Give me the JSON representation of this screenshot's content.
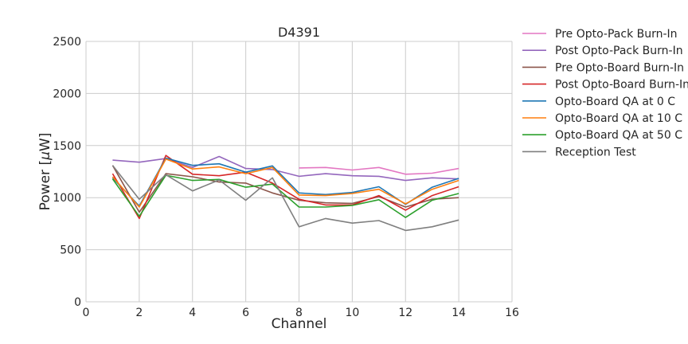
{
  "chart_data": {
    "type": "line",
    "title": "D4391",
    "xlabel": "Channel",
    "ylabel_parts": [
      "Power [",
      "μ",
      "W]"
    ],
    "xlim": [
      0,
      16
    ],
    "ylim": [
      0,
      2500
    ],
    "xticks": [
      0,
      2,
      4,
      6,
      8,
      10,
      12,
      14,
      16
    ],
    "yticks": [
      0,
      500,
      1000,
      1500,
      2000,
      2500
    ],
    "grid": true,
    "legend_position": "outside-right",
    "series": [
      {
        "name": "Pre Opto-Pack Burn-In",
        "color": "#e377c2",
        "x": [
          8,
          9,
          10,
          11,
          12,
          13,
          14
        ],
        "y": [
          1285,
          1290,
          1265,
          1290,
          1225,
          1235,
          1280
        ]
      },
      {
        "name": "Post Opto-Pack Burn-In",
        "color": "#9467bd",
        "x": [
          1,
          2,
          3,
          4,
          5,
          6,
          7,
          8,
          9,
          10,
          11,
          12,
          13,
          14
        ],
        "y": [
          1360,
          1340,
          1375,
          1290,
          1395,
          1280,
          1270,
          1205,
          1230,
          1210,
          1205,
          1165,
          1190,
          1180
        ]
      },
      {
        "name": "Pre Opto-Board Burn-In",
        "color": "#8c564b",
        "x": [
          1,
          2,
          3,
          4,
          5,
          6,
          7,
          8,
          9,
          10,
          11,
          12,
          13,
          14
        ],
        "y": [
          1310,
          860,
          1230,
          1200,
          1150,
          1140,
          1045,
          975,
          950,
          945,
          1010,
          910,
          985,
          1000
        ]
      },
      {
        "name": "Post Opto-Board Burn-In",
        "color": "#d62728",
        "x": [
          1,
          2,
          3,
          4,
          5,
          6,
          7,
          8,
          9,
          10,
          11,
          12,
          13,
          14
        ],
        "y": [
          1230,
          800,
          1405,
          1225,
          1210,
          1245,
          1140,
          985,
          930,
          930,
          1020,
          880,
          1020,
          1105
        ]
      },
      {
        "name": "Opto-Board QA at 0 C",
        "color": "#1f77b4",
        "x": [
          1,
          2,
          3,
          4,
          5,
          6,
          7,
          8,
          9,
          10,
          11,
          12,
          13,
          14
        ],
        "y": [
          1190,
          920,
          1380,
          1310,
          1325,
          1245,
          1305,
          1045,
          1030,
          1050,
          1105,
          935,
          1100,
          1185
        ]
      },
      {
        "name": "Opto-Board QA at 10 C",
        "color": "#ff7f0e",
        "x": [
          1,
          2,
          3,
          4,
          5,
          6,
          7,
          8,
          9,
          10,
          11,
          12,
          13,
          14
        ],
        "y": [
          1200,
          910,
          1370,
          1275,
          1295,
          1230,
          1290,
          1025,
          1020,
          1040,
          1080,
          940,
          1080,
          1165
        ]
      },
      {
        "name": "Opto-Board QA at 50 C",
        "color": "#2ca02c",
        "x": [
          1,
          2,
          3,
          4,
          5,
          6,
          7,
          8,
          9,
          10,
          11,
          12,
          13,
          14
        ],
        "y": [
          1180,
          820,
          1215,
          1165,
          1175,
          1100,
          1130,
          910,
          910,
          925,
          980,
          810,
          975,
          1040
        ]
      },
      {
        "name": "Reception Test",
        "color": "#7f7f7f",
        "x": [
          1,
          2,
          3,
          4,
          5,
          6,
          7,
          8,
          9,
          10,
          11,
          12,
          13,
          14
        ],
        "y": [
          1310,
          985,
          1220,
          1065,
          1170,
          975,
          1190,
          720,
          800,
          755,
          780,
          685,
          720,
          785
        ]
      }
    ]
  }
}
